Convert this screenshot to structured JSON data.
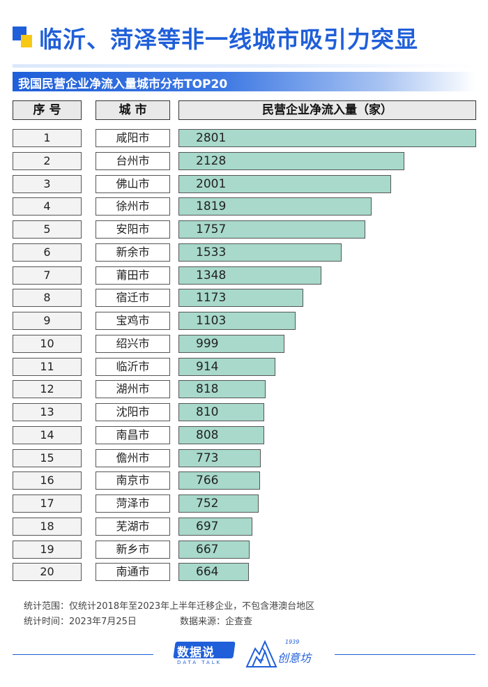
{
  "title": "临沂、菏泽等非一线城市吸引力突显",
  "subtitle": "我国民营企业净流入量城市分布TOP20",
  "headers": {
    "rank": "序 号",
    "city": "城 市",
    "value": "民营企业净流入量（家）"
  },
  "colors": {
    "accent": "#1f5fd9",
    "accent_yellow": "#f7c814",
    "bar": "#a8d9cb"
  },
  "chart_data": {
    "type": "bar",
    "orientation": "horizontal",
    "title": "我国民营企业净流入量城市分布TOP20",
    "value_label": "民营企业净流入量（家）",
    "ranks": [
      "1",
      "2",
      "3",
      "4",
      "5",
      "6",
      "7",
      "8",
      "9",
      "10",
      "11",
      "12",
      "13",
      "14",
      "15",
      "16",
      "17",
      "18",
      "19",
      "20"
    ],
    "categories": [
      "咸阳市",
      "台州市",
      "佛山市",
      "徐州市",
      "安阳市",
      "新余市",
      "莆田市",
      "宿迁市",
      "宝鸡市",
      "绍兴市",
      "临沂市",
      "湖州市",
      "沈阳市",
      "南昌市",
      "儋州市",
      "南京市",
      "菏泽市",
      "芜湖市",
      "新乡市",
      "南通市"
    ],
    "values": [
      2801,
      2128,
      2001,
      1819,
      1757,
      1533,
      1348,
      1173,
      1103,
      999,
      914,
      818,
      810,
      808,
      773,
      766,
      752,
      697,
      667,
      664
    ],
    "xlim": [
      0,
      2801
    ]
  },
  "notes": {
    "scope": "统计范围：仅统计2018年至2023年上半年迁移企业，不包含港澳台地区",
    "time": "统计时间：2023年7月25日",
    "source": "数据来源：企查查"
  },
  "footer": {
    "brand1_zh": "数据说",
    "brand1_en": "DATA TALK",
    "brand2_year": "1939",
    "brand2_name": "创意坊"
  }
}
